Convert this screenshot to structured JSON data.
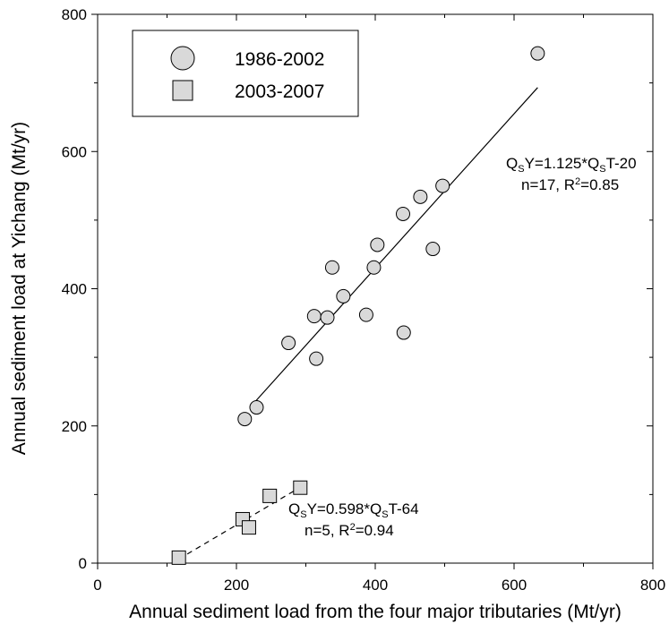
{
  "chart_data": {
    "type": "scatter",
    "xlabel": "Annual sediment load from the four major tributaries (Mt/yr)",
    "ylabel": "Annual sediment load at Yichang (Mt/yr)",
    "xlim": [
      0,
      800
    ],
    "ylim": [
      0,
      800
    ],
    "xticks": [
      0,
      200,
      400,
      600,
      800
    ],
    "yticks": [
      0,
      200,
      400,
      600,
      800
    ],
    "grid": false,
    "legend_position": "top-left",
    "series": [
      {
        "name": "1986-2002",
        "marker": "circle",
        "color": "#d9d9d9",
        "x": [
          212,
          229,
          275,
          312,
          315,
          331,
          338,
          354,
          387,
          398,
          403,
          441,
          440,
          465,
          483,
          497,
          634
        ],
        "y": [
          210,
          227,
          321,
          360,
          298,
          358,
          431,
          389,
          362,
          431,
          464,
          336,
          509,
          534,
          458,
          550,
          743
        ]
      },
      {
        "name": "2003-2007",
        "marker": "square",
        "color": "#d9d9d9",
        "x": [
          117,
          209,
          218,
          248,
          292
        ],
        "y": [
          8,
          64,
          52,
          98,
          110
        ]
      }
    ],
    "fits": [
      {
        "series": "1986-2002",
        "line_style": "solid",
        "slope": 1.125,
        "intercept": -20,
        "x_range": [
          227,
          634
        ],
        "equation": {
          "pre": "Q",
          "sub1": "S",
          "mid": "Y=1.125*Q",
          "sub2": "S",
          "post": "T-20"
        },
        "stats": {
          "pre": "n=17, R",
          "sup": "2",
          "post": "=0.85"
        }
      },
      {
        "series": "2003-2007",
        "line_style": "dashed",
        "slope": 0.598,
        "intercept": -64,
        "x_range": [
          117,
          302
        ],
        "equation": {
          "pre": "Q",
          "sub1": "S",
          "mid": "Y=0.598*Q",
          "sub2": "S",
          "post": "T-64"
        },
        "stats": {
          "pre": "n=5, R",
          "sup": "2",
          "post": "=0.94"
        }
      }
    ]
  }
}
